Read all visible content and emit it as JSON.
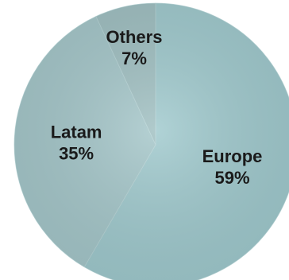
{
  "chart_data": {
    "type": "pie",
    "title": "",
    "slices": [
      {
        "label": "Europe",
        "value": 59,
        "value_label": "59%",
        "color": "#9fc9cd"
      },
      {
        "label": "Latam",
        "value": 35,
        "value_label": "35%",
        "color": "#a4c6c9"
      },
      {
        "label": "Others",
        "value": 7,
        "value_label": "7%",
        "color": "#9fbfc1"
      }
    ],
    "start_angle_deg": 0,
    "direction": "clockwise",
    "legend": "none"
  }
}
